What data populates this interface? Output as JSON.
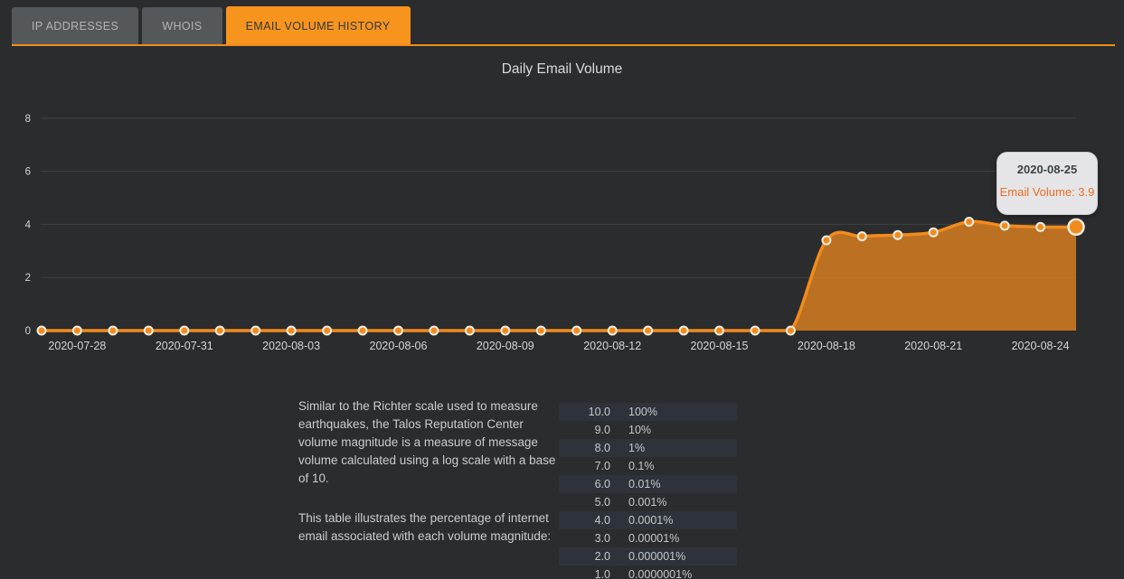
{
  "tabs": [
    {
      "label": "IP ADDRESSES",
      "active": false
    },
    {
      "label": "WHOIS",
      "active": false
    },
    {
      "label": "EMAIL VOLUME HISTORY",
      "active": true
    }
  ],
  "chart": {
    "title": "Daily Email Volume",
    "tooltip": {
      "date": "2020-08-25",
      "text": "Email Volume: 3.9"
    }
  },
  "chart_data": {
    "type": "area",
    "title": "Daily Email Volume",
    "x": [
      "2020-07-27",
      "2020-07-28",
      "2020-07-29",
      "2020-07-30",
      "2020-07-31",
      "2020-08-01",
      "2020-08-02",
      "2020-08-03",
      "2020-08-04",
      "2020-08-05",
      "2020-08-06",
      "2020-08-07",
      "2020-08-08",
      "2020-08-09",
      "2020-08-10",
      "2020-08-11",
      "2020-08-12",
      "2020-08-13",
      "2020-08-14",
      "2020-08-15",
      "2020-08-16",
      "2020-08-17",
      "2020-08-18",
      "2020-08-19",
      "2020-08-20",
      "2020-08-21",
      "2020-08-22",
      "2020-08-23",
      "2020-08-24",
      "2020-08-25"
    ],
    "values": [
      0,
      0,
      0,
      0,
      0,
      0,
      0,
      0,
      0,
      0,
      0,
      0,
      0,
      0,
      0,
      0,
      0,
      0,
      0,
      0,
      0,
      0,
      3.4,
      3.55,
      3.6,
      3.7,
      4.1,
      3.95,
      3.9,
      3.9
    ],
    "x_tick_labels": [
      "2020-07-28",
      "2020-07-31",
      "2020-08-03",
      "2020-08-06",
      "2020-08-09",
      "2020-08-12",
      "2020-08-15",
      "2020-08-18",
      "2020-08-21",
      "2020-08-24"
    ],
    "y_ticks": [
      0,
      2,
      4,
      6,
      8
    ],
    "ylim": [
      0,
      8.8
    ],
    "grid": true,
    "legend": false,
    "highlighted_point": {
      "x": "2020-08-25",
      "value": 3.9
    },
    "colors": {
      "line": "#f28b1e",
      "area": "#f28b1e",
      "area_opacity": 0.72,
      "point_stroke": "#f3ede2",
      "grid": "#3f4243",
      "axis_text": "#d3d6d8",
      "accent": "#f7941e"
    }
  },
  "info": {
    "paragraph1": "Similar to the Richter scale used to measure earthquakes, the Talos Reputation Center volume magnitude is a measure of message volume calculated using a log scale with a base of 10.",
    "paragraph2": "This table illustrates the percentage of internet email associated with each volume magnitude:"
  },
  "magnitude_table": {
    "rows": [
      {
        "magnitude": "10.0",
        "percent": "100%"
      },
      {
        "magnitude": "9.0",
        "percent": "10%"
      },
      {
        "magnitude": "8.0",
        "percent": "1%"
      },
      {
        "magnitude": "7.0",
        "percent": "0.1%"
      },
      {
        "magnitude": "6.0",
        "percent": "0.01%"
      },
      {
        "magnitude": "5.0",
        "percent": "0.001%"
      },
      {
        "magnitude": "4.0",
        "percent": "0.0001%"
      },
      {
        "magnitude": "3.0",
        "percent": "0.00001%"
      },
      {
        "magnitude": "2.0",
        "percent": "0.000001%"
      },
      {
        "magnitude": "1.0",
        "percent": "0.0000001%"
      }
    ]
  }
}
